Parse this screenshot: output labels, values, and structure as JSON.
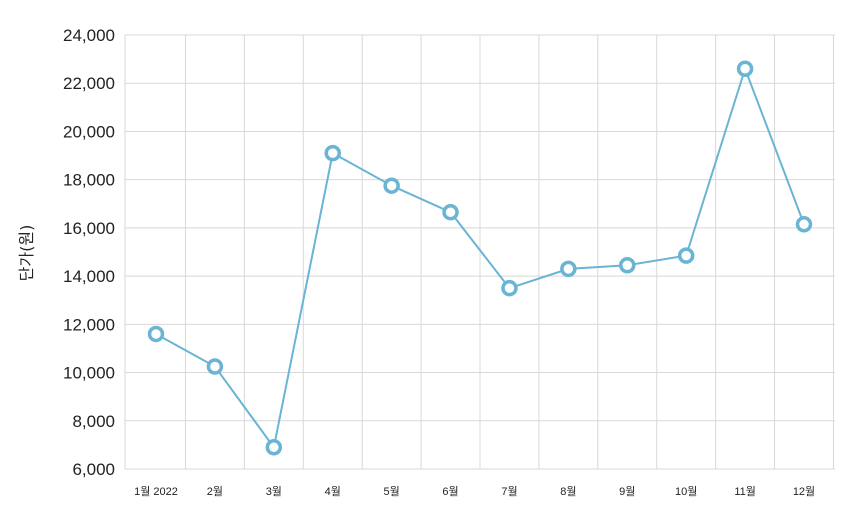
{
  "chart_data": {
    "type": "line",
    "title": "",
    "xlabel": "",
    "ylabel": "단가(원)",
    "categories": [
      "1월 2022",
      "2월",
      "3월",
      "4월",
      "5월",
      "6월",
      "7월",
      "8월",
      "9월",
      "10월",
      "11월",
      "12월"
    ],
    "series": [
      {
        "values": [
          11600,
          10250,
          6900,
          19100,
          17750,
          16650,
          13500,
          14300,
          14450,
          14850,
          22600,
          16150
        ]
      }
    ],
    "ylim": [
      6000,
      24000
    ],
    "yticks": [
      "6,000",
      "8,000",
      "10,000",
      "12,000",
      "14,000",
      "16,000",
      "18,000",
      "20,000",
      "22,000",
      "24,000"
    ],
    "grid": true,
    "legend": "none",
    "color": "#6ab4d4"
  }
}
